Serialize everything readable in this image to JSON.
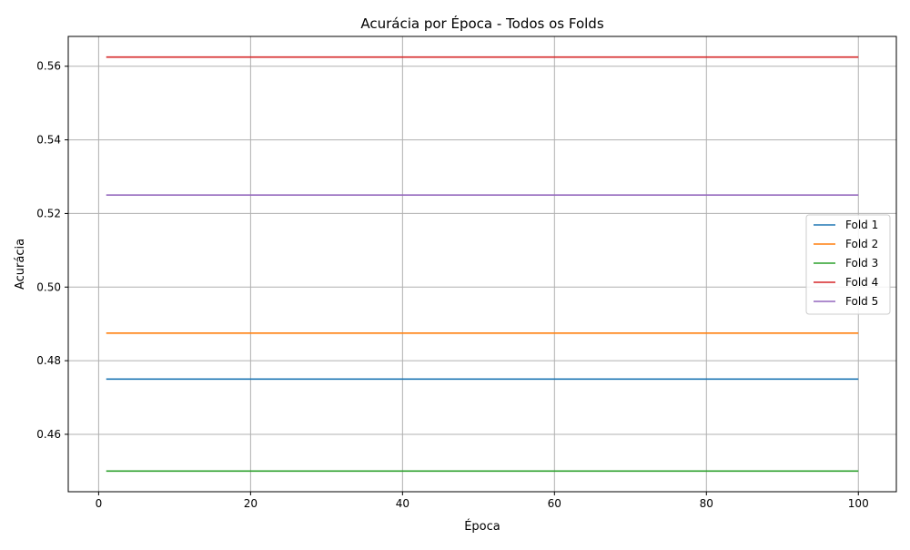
{
  "chart_data": {
    "type": "line",
    "title": "Acurácia por Época - Todos os Folds",
    "xlabel": "Época",
    "ylabel": "Acurácia",
    "xlim": [
      -4,
      105
    ],
    "ylim": [
      0.4444,
      0.5681
    ],
    "x_range": [
      1,
      100
    ],
    "xticks": [
      0,
      20,
      40,
      60,
      80,
      100
    ],
    "yticks": [
      0.46,
      0.48,
      0.5,
      0.52,
      0.54,
      0.56
    ],
    "ytick_labels": [
      "0.46",
      "0.48",
      "0.50",
      "0.52",
      "0.54",
      "0.56"
    ],
    "grid": true,
    "legend_position": "center-right",
    "series": [
      {
        "name": "Fold 1",
        "color": "#1f77b4",
        "x": [
          1,
          100
        ],
        "y": [
          0.475,
          0.475
        ]
      },
      {
        "name": "Fold 2",
        "color": "#ff7f0e",
        "x": [
          1,
          100
        ],
        "y": [
          0.4875,
          0.4875
        ]
      },
      {
        "name": "Fold 3",
        "color": "#2ca02c",
        "x": [
          1,
          100
        ],
        "y": [
          0.45,
          0.45
        ]
      },
      {
        "name": "Fold 4",
        "color": "#d62728",
        "x": [
          1,
          100
        ],
        "y": [
          0.5625,
          0.5625
        ]
      },
      {
        "name": "Fold 5",
        "color": "#9467bd",
        "x": [
          1,
          100
        ],
        "y": [
          0.525,
          0.525
        ]
      }
    ]
  }
}
